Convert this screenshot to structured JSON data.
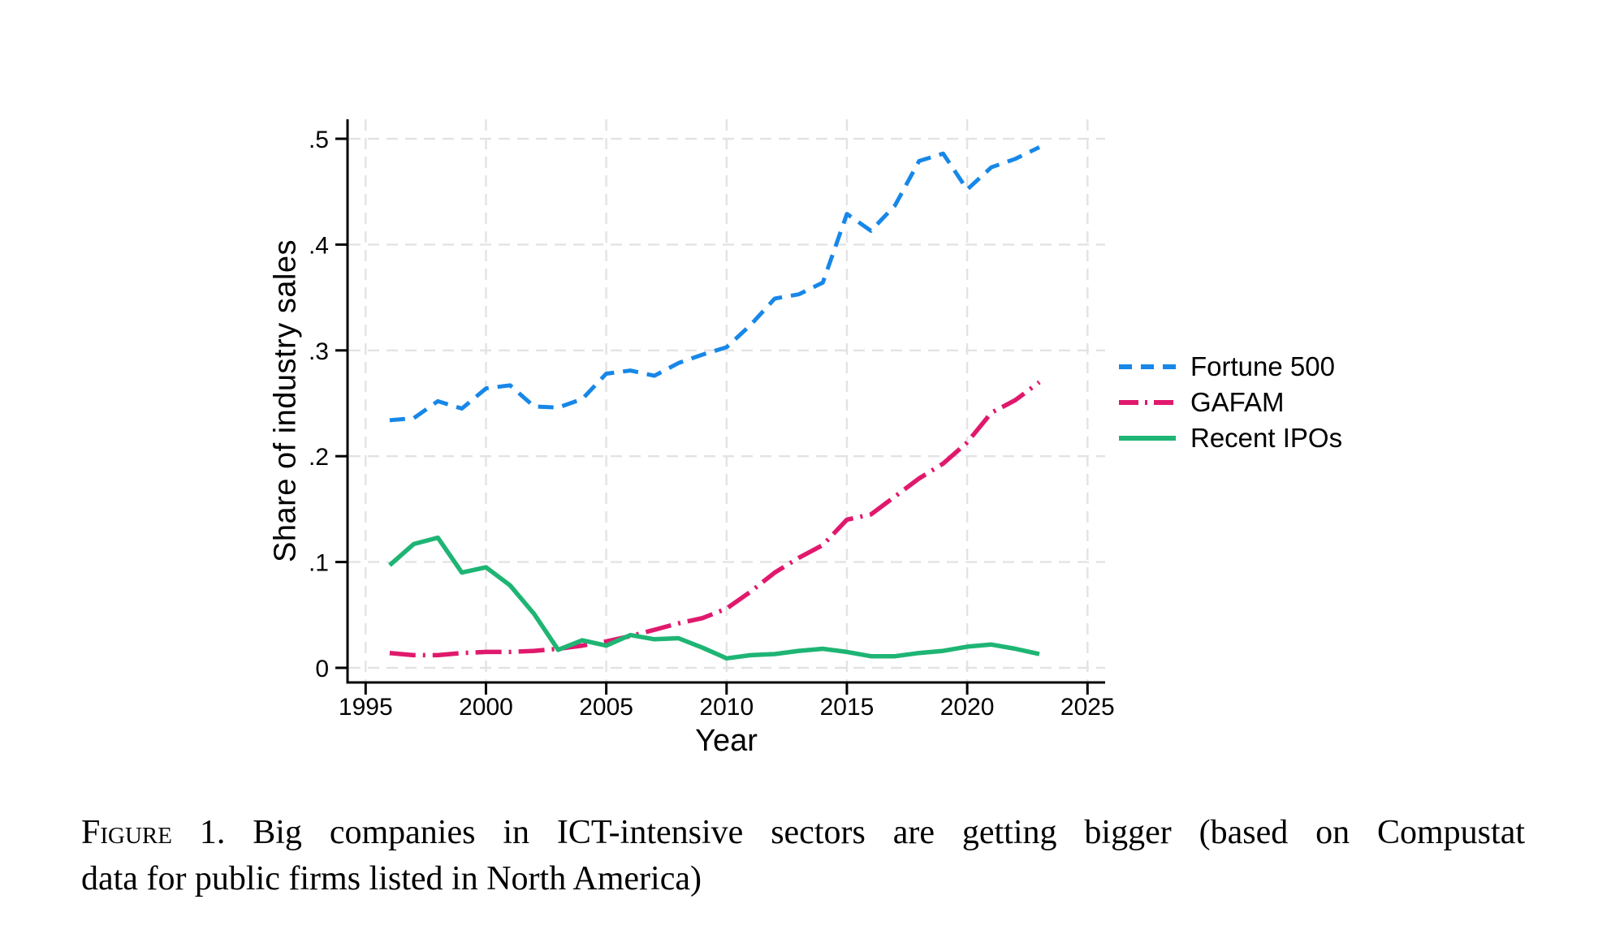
{
  "page": {
    "background_color": "#ffffff"
  },
  "chart_data": {
    "type": "line",
    "title": "",
    "xlabel": "Year",
    "ylabel": "Share of industry sales",
    "grid": true,
    "legend_position": "right-outside",
    "xlim": [
      1994.25,
      2025.75
    ],
    "ylim": [
      -0.014,
      0.517
    ],
    "x_ticks": [
      1995,
      2000,
      2005,
      2010,
      2015,
      2020,
      2025
    ],
    "y_ticks": [
      {
        "v": 0.0,
        "label": "0"
      },
      {
        "v": 0.1,
        "label": ".1"
      },
      {
        "v": 0.2,
        "label": ".2"
      },
      {
        "v": 0.3,
        "label": ".3"
      },
      {
        "v": 0.4,
        "label": ".4"
      },
      {
        "v": 0.5,
        "label": ".5"
      }
    ],
    "x": [
      1996,
      1997,
      1998,
      1999,
      2000,
      2001,
      2002,
      2003,
      2004,
      2005,
      2006,
      2007,
      2008,
      2009,
      2010,
      2011,
      2012,
      2013,
      2014,
      2015,
      2016,
      2017,
      2018,
      2019,
      2020,
      2021,
      2022,
      2023
    ],
    "series": [
      {
        "name": "Fortune 500",
        "color": "#1787e8",
        "style": "dashed",
        "values": [
          0.234,
          0.236,
          0.252,
          0.245,
          0.264,
          0.267,
          0.247,
          0.246,
          0.254,
          0.278,
          0.281,
          0.276,
          0.288,
          0.296,
          0.303,
          0.324,
          0.349,
          0.353,
          0.364,
          0.429,
          0.413,
          0.437,
          0.479,
          0.486,
          0.452,
          0.473,
          0.481,
          0.492
        ]
      },
      {
        "name": "GAFAM",
        "color": "#e0196d",
        "style": "dashdot",
        "values": [
          0.014,
          0.012,
          0.012,
          0.014,
          0.015,
          0.015,
          0.016,
          0.018,
          0.021,
          0.025,
          0.03,
          0.036,
          0.042,
          0.047,
          0.056,
          0.072,
          0.09,
          0.104,
          0.116,
          0.14,
          0.145,
          0.162,
          0.179,
          0.193,
          0.213,
          0.241,
          0.253,
          0.27
        ]
      },
      {
        "name": "Recent IPOs",
        "color": "#1eb574",
        "style": "solid",
        "values": [
          0.097,
          0.117,
          0.123,
          0.09,
          0.095,
          0.078,
          0.051,
          0.017,
          0.026,
          0.021,
          0.031,
          0.027,
          0.028,
          0.019,
          0.009,
          0.012,
          0.013,
          0.016,
          0.018,
          0.015,
          0.011,
          0.011,
          0.014,
          0.016,
          0.02,
          0.022,
          0.018,
          0.013
        ]
      }
    ]
  },
  "caption": {
    "label": "Figure",
    "text_line1": "1. Big companies in ICT-intensive sectors are getting bigger (based on Compustat",
    "text_line2": "data for public firms listed in North America)"
  }
}
